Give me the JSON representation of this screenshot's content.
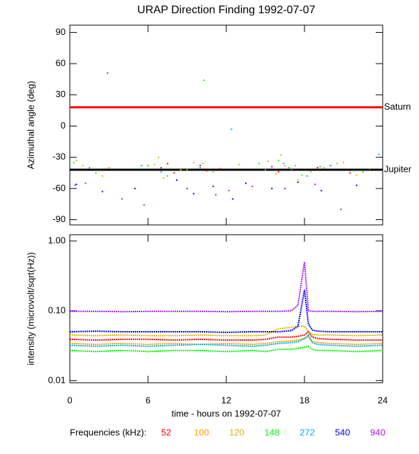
{
  "title": "URAP Direction Finding  1992-07-07",
  "legend_label": "Frequencies (kHz):",
  "chart_data": [
    {
      "type": "scatter",
      "ylabel": "Azimuthal angle (deg)",
      "xlim": [
        0,
        24
      ],
      "xticks": [
        0,
        6,
        12,
        18,
        24
      ],
      "ylim": [
        -95,
        97
      ],
      "yticks": [
        90,
        60,
        30,
        0,
        -30,
        -60,
        -90
      ],
      "reference_lines": [
        {
          "label": "Saturn",
          "value": 18,
          "color": "#ff0000"
        },
        {
          "label": "Jupiter",
          "value": -42,
          "color": "#000000"
        }
      ],
      "series": [
        {
          "name": "52",
          "color": "#ff0000",
          "x": [
            7,
            7.5,
            8,
            10,
            10.5,
            11.5,
            15.5,
            16,
            17,
            19,
            20,
            21.5
          ],
          "values": [
            -40,
            -36,
            -45,
            -38,
            -43,
            -41,
            -39,
            -44,
            -42,
            -40,
            -38,
            -45
          ]
        },
        {
          "name": "100",
          "color": "#ffa500",
          "x": [
            1,
            2.5,
            6.5,
            7.2,
            9.5,
            11,
            15.8,
            16.5,
            17.5,
            19.5,
            20.5,
            22
          ],
          "values": [
            -38,
            -48,
            -37,
            -50,
            -35,
            -44,
            -46,
            -38,
            -52,
            -40,
            -36,
            -47
          ]
        },
        {
          "name": "120",
          "color": "#d4b800",
          "x": [
            0.5,
            3,
            6.8,
            8.5,
            10.2,
            13,
            15.2,
            16.2,
            17.3,
            18.5,
            21,
            23
          ],
          "values": [
            -33,
            -40,
            -30,
            -42,
            -36,
            -37,
            -34,
            -28,
            -38,
            -44,
            -35,
            -41
          ]
        },
        {
          "name": "148",
          "color": "#00ff00",
          "x": [
            0.3,
            2,
            6,
            7.5,
            9,
            10.3,
            14.5,
            16,
            16.8,
            17.8,
            19.2,
            22.5
          ],
          "values": [
            -35,
            -45,
            -38,
            -48,
            -42,
            44,
            -36,
            -33,
            -40,
            -47,
            -39,
            -44
          ]
        },
        {
          "name": "272",
          "color": "#00b0ff",
          "x": [
            1.5,
            5.5,
            7,
            10,
            12.4,
            15,
            16.4,
            17,
            18.2,
            20,
            21.8,
            23.7
          ],
          "values": [
            -40,
            -38,
            -44,
            -40,
            -3,
            -42,
            -36,
            -41,
            -48,
            -38,
            -43,
            -27
          ]
        },
        {
          "name": "540",
          "color": "#0000ff",
          "x": [
            0.5,
            2.5,
            5,
            8.2,
            9.5,
            11,
            12.5,
            13.5,
            15.5,
            17.5,
            19.3,
            22
          ],
          "values": [
            -56,
            -63,
            -60,
            -52,
            -65,
            -58,
            -70,
            -55,
            -60,
            -54,
            -62,
            -57
          ]
        },
        {
          "name": "940",
          "color": "#a020f0",
          "x": [
            0.4,
            1.2,
            2.9,
            4,
            5.7,
            9,
            11.2,
            12.2,
            14,
            16.5,
            18.8,
            20.8
          ],
          "values": [
            -57,
            -55,
            51,
            -70,
            -76,
            -60,
            -66,
            -62,
            -58,
            -60,
            -56,
            -80
          ]
        }
      ]
    },
    {
      "type": "line",
      "ylabel": "intensity (microvolt/sqrt(Hz))",
      "xlabel": "time - hours on 1992-07-07",
      "log_y": true,
      "xlim": [
        0,
        24
      ],
      "xticks": [
        0,
        6,
        12,
        18,
        24
      ],
      "ylim": [
        0.0093,
        1.23
      ],
      "yticks": [
        {
          "value": 1,
          "label": "1.00"
        },
        {
          "value": 0.1,
          "label": "0.10"
        },
        {
          "value": 0.01,
          "label": "0.01"
        }
      ],
      "x": [
        0,
        2,
        4,
        6,
        8,
        10,
        12,
        14,
        15,
        16,
        17,
        17.5,
        18,
        18.3,
        18.6,
        19,
        20,
        22,
        24
      ],
      "series": [
        {
          "values": [
            0.039,
            0.038,
            0.039,
            0.039,
            0.038,
            0.039,
            0.038,
            0.038,
            0.039,
            0.042,
            0.042,
            0.043,
            0.045,
            0.05,
            0.042,
            0.04,
            0.039,
            0.038,
            0.038
          ]
        },
        {
          "values": [
            0.034,
            0.033,
            0.034,
            0.033,
            0.034,
            0.033,
            0.034,
            0.033,
            0.034,
            0.036,
            0.037,
            0.038,
            0.04,
            0.042,
            0.036,
            0.035,
            0.034,
            0.033,
            0.034
          ]
        },
        {
          "values": [
            0.045,
            0.044,
            0.045,
            0.044,
            0.044,
            0.045,
            0.044,
            0.044,
            0.045,
            0.055,
            0.058,
            0.06,
            0.06,
            0.05,
            0.046,
            0.045,
            0.045,
            0.044,
            0.045
          ]
        },
        {
          "values": [
            0.027,
            0.026,
            0.027,
            0.026,
            0.027,
            0.027,
            0.026,
            0.027,
            0.026,
            0.028,
            0.028,
            0.029,
            0.03,
            0.031,
            0.028,
            0.027,
            0.027,
            0.026,
            0.027
          ]
        },
        {
          "values": [
            0.032,
            0.031,
            0.032,
            0.031,
            0.032,
            0.033,
            0.032,
            0.031,
            0.032,
            0.034,
            0.035,
            0.036,
            0.04,
            0.045,
            0.035,
            0.033,
            0.032,
            0.031,
            0.032
          ]
        },
        {
          "values": [
            0.05,
            0.051,
            0.05,
            0.05,
            0.05,
            0.05,
            0.049,
            0.05,
            0.05,
            0.05,
            0.052,
            0.06,
            0.2,
            0.065,
            0.053,
            0.051,
            0.05,
            0.05,
            0.05
          ]
        },
        {
          "values": [
            0.098,
            0.098,
            0.097,
            0.098,
            0.098,
            0.098,
            0.097,
            0.098,
            0.098,
            0.098,
            0.1,
            0.12,
            0.5,
            0.1,
            0.098,
            0.098,
            0.098,
            0.097,
            0.098
          ]
        }
      ]
    }
  ]
}
